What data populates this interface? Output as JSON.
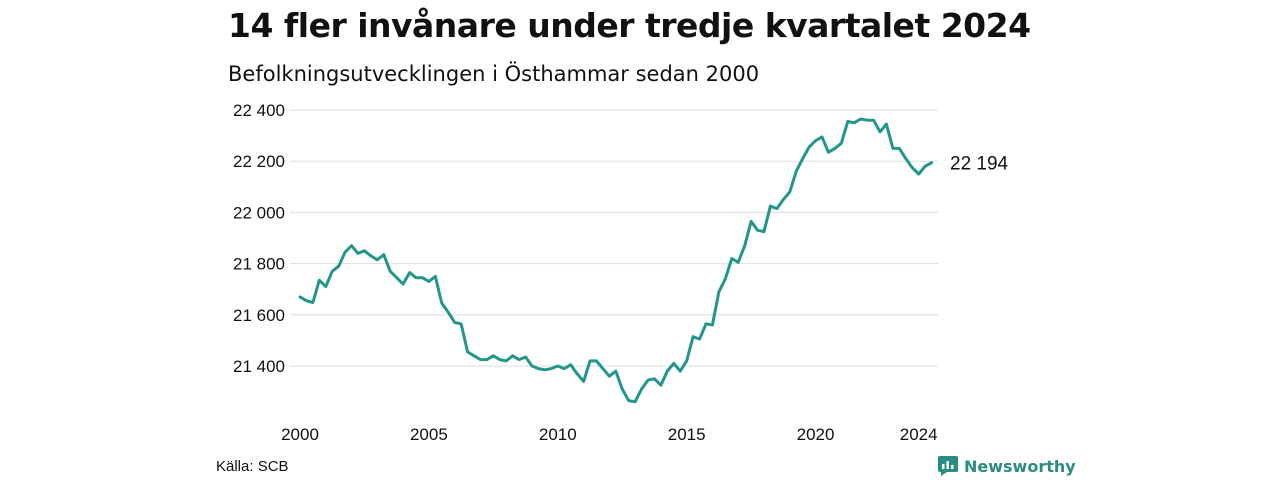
{
  "header": {
    "title": "14 fler invånare under tredje kvartalet 2024",
    "subtitle": "Befolkningsutvecklingen i Östhammar sedan 2000"
  },
  "footer": {
    "source": "Källa: SCB",
    "brand": "Newsworthy"
  },
  "colors": {
    "line": "#23968a",
    "brand": "#2a8c82",
    "grid": "#dddddd"
  },
  "chart_data": {
    "type": "line",
    "xlim": [
      2000,
      2024.75
    ],
    "ylim": [
      21260,
      22400
    ],
    "x_ticks": [
      2000,
      2005,
      2010,
      2015,
      2020,
      2024
    ],
    "y_ticks": [
      21400,
      21600,
      21800,
      22000,
      22200,
      22400
    ],
    "y_tick_labels": [
      "21 400",
      "21 600",
      "21 800",
      "22 000",
      "22 200",
      "22 400"
    ],
    "grid": true,
    "end_label": "22 194",
    "series": [
      {
        "x": [
          2000.0,
          2000.25,
          2000.5,
          2000.75,
          2001.0,
          2001.25,
          2001.5,
          2001.75,
          2002.0,
          2002.25,
          2002.5,
          2002.75,
          2003.0,
          2003.25,
          2003.5,
          2003.75,
          2004.0,
          2004.25,
          2004.5,
          2004.75,
          2005.0,
          2005.25,
          2005.5,
          2005.75,
          2006.0,
          2006.25,
          2006.5,
          2006.75,
          2007.0,
          2007.25,
          2007.5,
          2007.75,
          2008.0,
          2008.25,
          2008.5,
          2008.75,
          2009.0,
          2009.25,
          2009.5,
          2009.75,
          2010.0,
          2010.25,
          2010.5,
          2010.75,
          2011.0,
          2011.25,
          2011.5,
          2011.75,
          2012.0,
          2012.25,
          2012.5,
          2012.75,
          2013.0,
          2013.25,
          2013.5,
          2013.75,
          2014.0,
          2014.25,
          2014.5,
          2014.75,
          2015.0,
          2015.25,
          2015.5,
          2015.75,
          2016.0,
          2016.25,
          2016.5,
          2016.75,
          2017.0,
          2017.25,
          2017.5,
          2017.75,
          2018.0,
          2018.25,
          2018.5,
          2018.75,
          2019.0,
          2019.25,
          2019.5,
          2019.75,
          2020.0,
          2020.25,
          2020.5,
          2020.75,
          2021.0,
          2021.25,
          2021.5,
          2021.75,
          2022.0,
          2022.25,
          2022.5,
          2022.75,
          2023.0,
          2023.25,
          2023.5,
          2023.75,
          2024.0,
          2024.25,
          2024.5
        ],
        "values": [
          21670,
          21655,
          21648,
          21735,
          21710,
          21770,
          21790,
          21845,
          21870,
          21840,
          21850,
          21830,
          21815,
          21835,
          21770,
          21745,
          21720,
          21765,
          21745,
          21745,
          21730,
          21750,
          21645,
          21610,
          21570,
          21565,
          21455,
          21440,
          21425,
          21425,
          21440,
          21425,
          21420,
          21440,
          21425,
          21435,
          21400,
          21390,
          21385,
          21390,
          21400,
          21390,
          21405,
          21370,
          21340,
          21420,
          21420,
          21390,
          21360,
          21380,
          21310,
          21265,
          21260,
          21310,
          21345,
          21350,
          21325,
          21380,
          21410,
          21380,
          21420,
          21515,
          21505,
          21565,
          21560,
          21690,
          21740,
          21820,
          21805,
          21870,
          21965,
          21930,
          21925,
          22025,
          22015,
          22050,
          22080,
          22160,
          22210,
          22255,
          22280,
          22295,
          22235,
          22250,
          22270,
          22355,
          22350,
          22365,
          22360,
          22360,
          22315,
          22345,
          22250,
          22250,
          22210,
          22175,
          22150,
          22180,
          22194
        ]
      }
    ]
  }
}
